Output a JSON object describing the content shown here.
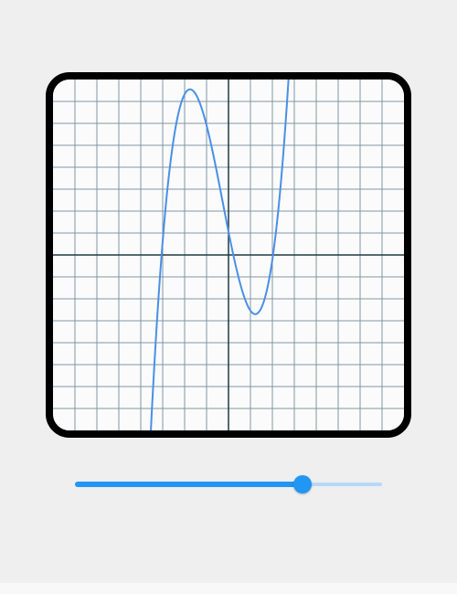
{
  "colors": {
    "background": "#efefef",
    "frame_border": "#000000",
    "plot_background": "#fbfbfb",
    "grid_line": "#7f97a3",
    "axis_line": "#1e3a44",
    "curve": "#4a8fe7",
    "slider_active": "#2196f3",
    "slider_inactive": "#b7d9f7",
    "slider_thumb": "#2196f3"
  },
  "graph": {
    "x_range": [
      -8,
      8
    ],
    "y_range": [
      -8,
      8
    ],
    "grid_step": 1,
    "grid_visible": true,
    "function": "cubic",
    "roots": [
      -3.05,
      0.22,
      2.03
    ],
    "leading_coefficient": 0.78
  },
  "slider": {
    "min": 0,
    "max": 1,
    "value": 0.74
  }
}
